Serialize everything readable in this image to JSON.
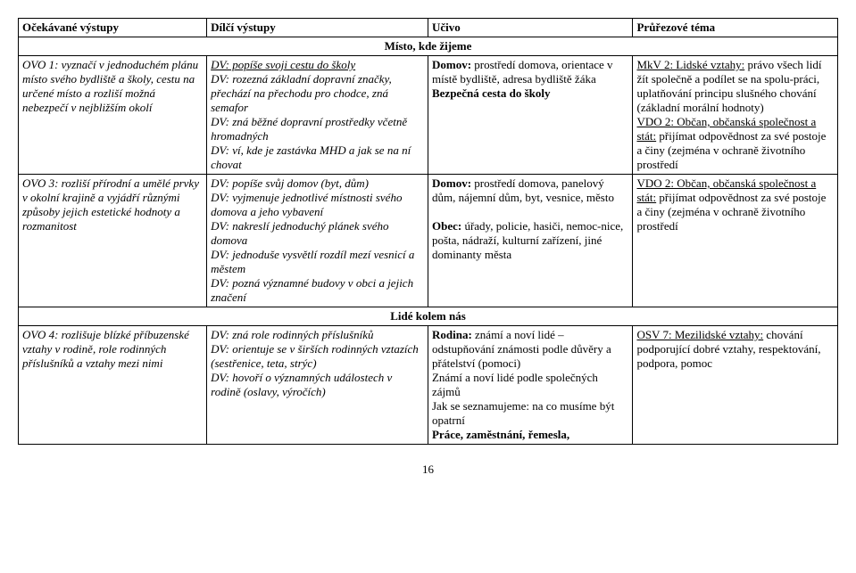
{
  "headers": {
    "c1": "Očekávané výstupy",
    "c2": "Dílčí výstupy",
    "c3": "Učivo",
    "c4": "Průřezové téma"
  },
  "section1": "Místo, kde žijeme",
  "row1": {
    "c1": "OVO 1: vyznačí v jednoduchém plánu místo svého bydliště a školy, cestu na určené místo a rozliší možná nebezpečí v nejbližším okolí",
    "c2a_u": "DV: popíše svoji cestu do školy",
    "c2b": "DV: rozezná základní dopravní značky, přechází na přechodu pro chodce, zná semafor",
    "c2c": "DV: zná běžné dopravní prostředky včetně hromadných",
    "c2d": "DV: ví, kde je zastávka MHD a jak se na ní chovat",
    "c3a_b": "Domov:",
    "c3a": " prostředí domova, orientace v místě bydliště, adresa bydliště žáka",
    "c3b_b": "Bezpečná cesta do školy",
    "c4a_u": "MkV 2: Lidské vztahy:",
    "c4a": " právo všech lidí žít společně a podílet se na spolu-práci, uplatňování principu slušného chování (základní morální hodnoty)",
    "c4b_u": "VDO 2: Občan, občanská společnost a stát:",
    "c4b": " přijímat odpovědnost za své postoje a činy (zejména v ochraně životního prostředí"
  },
  "row2": {
    "c1": "OVO 3: rozliší přírodní a umělé prvky v okolní krajině a vyjádří různými způsoby jejich estetické hodnoty a rozmanitost",
    "c2a": "DV: popíše svůj domov  (byt, dům)",
    "c2b": "DV: vyjmenuje jednotlivé místnosti svého domova a jeho vybavení",
    "c2c": "DV: nakreslí jednoduchý plánek svého domova",
    "c2d": "DV: jednoduše vysvětlí rozdíl mezí vesnicí a městem",
    "c2e": "DV: pozná významné budovy v obci a jejich značení",
    "c3a_b": "Domov:",
    "c3a": " prostředí domova, panelový dům, nájemní dům, byt, vesnice, město",
    "c3b_b": "Obec:",
    "c3b": " úřady, policie, hasiči, nemoc-nice, pošta, nádraží, kulturní zařízení, jiné dominanty města",
    "c4a_u": "VDO 2: Občan, občanská společnost a stát:",
    "c4a": " přijímat odpovědnost za své postoje a činy (zejména v ochraně životního prostředí"
  },
  "section2": "Lidé kolem nás",
  "row3": {
    "c1": "OVO 4: rozlišuje blízké příbuzenské vztahy v rodině, role rodinných příslušníků a vztahy mezi nimi",
    "c2a": "DV: zná role rodinných příslušníků",
    "c2b": "DV: orientuje se v širších rodinných vztazích (sestřenice, teta, strýc)",
    "c2c": "DV: hovoří o významných událostech v rodině (oslavy, výročích)",
    "c3a_b": "Rodina:",
    "c3a": " známí a noví lidé – odstupňování známosti podle důvěry a přátelství (pomoci)",
    "c3b": "Známí a noví lidé podle společných zájmů",
    "c3c": "Jak se seznamujeme: na co musíme být opatrní",
    "c3d_b": "Práce, zaměstnání, řemesla,",
    "c4a_u": "OSV 7: Mezilidské vztahy:",
    "c4a": " chování podporující dobré vztahy, respektování, podpora, pomoc"
  },
  "page": "16"
}
